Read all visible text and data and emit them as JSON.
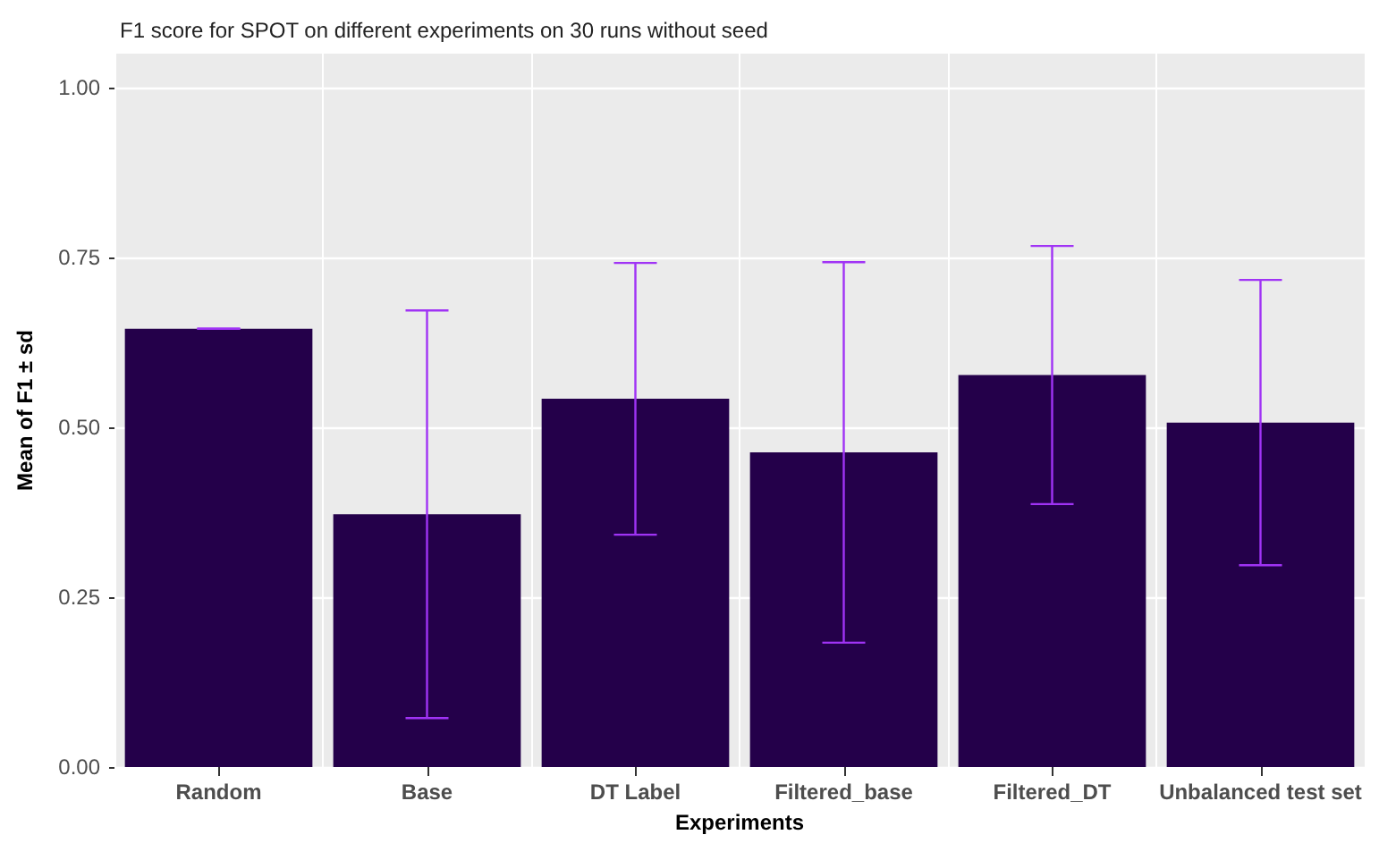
{
  "chart_data": {
    "type": "bar",
    "title": "F1 score for SPOT on different experiments on 30 runs without seed",
    "xlabel": "Experiments",
    "ylabel": "Mean of F1 ± sd",
    "categories": [
      "Random",
      "Base",
      "DT Label",
      "Filtered_base",
      "Filtered_DT",
      "Unbalanced test set"
    ],
    "values": [
      0.645,
      0.372,
      0.542,
      0.463,
      0.577,
      0.507
    ],
    "errors": [
      0,
      0.3,
      0.2,
      0.28,
      0.19,
      0.21
    ],
    "color": "#24004a",
    "ylim": [
      0,
      1.05
    ],
    "yticks": [
      {
        "value": 0,
        "label": "0.00"
      },
      {
        "value": 0.25,
        "label": "0.25"
      },
      {
        "value": 0.5,
        "label": "0.50"
      },
      {
        "value": 0.75,
        "label": "0.75"
      },
      {
        "value": 1,
        "label": "1.00"
      }
    ],
    "grid": true
  }
}
